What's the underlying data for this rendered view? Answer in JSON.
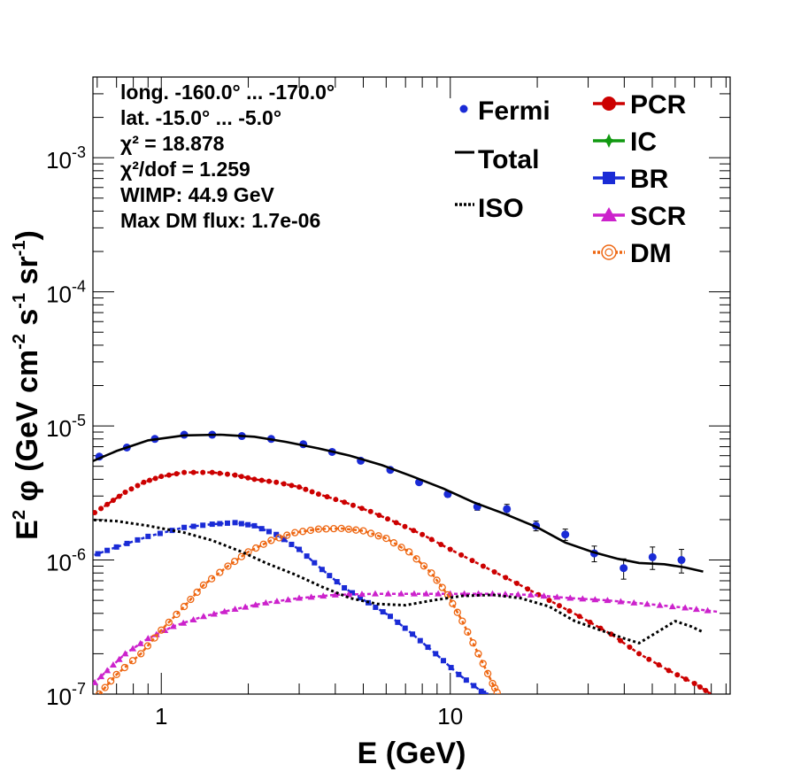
{
  "chart_data": {
    "type": "scatter",
    "x_scale": "log",
    "y_scale": "log",
    "xlim": [
      0.58,
      93
    ],
    "ylim": [
      1e-07,
      0.004
    ],
    "xlabel": "E (GeV)",
    "ylabel_parts": {
      "base": "E",
      "sup": "2",
      "middle": "φ (GeV cm",
      "sup2": "-2",
      "s": " s",
      "sup3": "-1",
      "sr": " sr",
      "sup4": "-1",
      "end": ")"
    },
    "x_ticks": [
      {
        "value": 1,
        "label": "1"
      },
      {
        "value": 10,
        "label": "10"
      }
    ],
    "y_ticks": [
      {
        "value": 1e-07,
        "base": "10",
        "exp": "-7"
      },
      {
        "value": 1e-06,
        "base": "10",
        "exp": "-6"
      },
      {
        "value": 1e-05,
        "base": "10",
        "exp": "-5"
      },
      {
        "value": 0.0001,
        "base": "10",
        "exp": "-4"
      },
      {
        "value": 0.001,
        "base": "10",
        "exp": "-3"
      }
    ],
    "info_lines": [
      "long. -160.0° ... -170.0°",
      "lat. -15.0° ... -5.0°",
      "χ² = 18.878",
      "χ²/dof = 1.259",
      "WIMP: 44.9 GeV",
      "Max DM flux: 1.7e-06"
    ],
    "legend_left": [
      {
        "name": "Fermi",
        "style": "point",
        "color": "#1a2bd6"
      },
      {
        "name": "Total",
        "style": "line",
        "color": "#000000"
      },
      {
        "name": "ISO",
        "style": "dotted",
        "color": "#000000"
      }
    ],
    "legend_right": [
      {
        "name": "PCR",
        "style": "circle",
        "color": "#cc0000"
      },
      {
        "name": "IC",
        "style": "star",
        "color": "#119911"
      },
      {
        "name": "BR",
        "style": "square",
        "color": "#1a2bd6"
      },
      {
        "name": "SCR",
        "style": "triangle",
        "color": "#cc22cc"
      },
      {
        "name": "DM",
        "style": "opencircle",
        "color": "#ee6611"
      }
    ],
    "series": [
      {
        "name": "Fermi",
        "kind": "points",
        "color": "#1a2bd6",
        "points": [
          [
            0.61,
            5.9e-06,
            2e-07
          ],
          [
            0.76,
            6.9e-06,
            2e-07
          ],
          [
            0.95,
            8e-06,
            2.5e-07
          ],
          [
            1.2,
            8.6e-06,
            2.5e-07
          ],
          [
            1.5,
            8.6e-06,
            2.5e-07
          ],
          [
            1.9,
            8.4e-06,
            2.5e-07
          ],
          [
            2.4,
            8e-06,
            2.5e-07
          ],
          [
            3.1,
            7.3e-06,
            2.5e-07
          ],
          [
            3.9,
            6.4e-06,
            2e-07
          ],
          [
            4.9,
            5.5e-06,
            2e-07
          ],
          [
            6.2,
            4.7e-06,
            2e-07
          ],
          [
            7.8,
            3.8e-06,
            1.5e-07
          ],
          [
            9.8,
            3.1e-06,
            1.5e-07
          ],
          [
            12.4,
            2.5e-06,
            1.5e-07
          ],
          [
            15.7,
            2.4e-06,
            2e-07
          ],
          [
            19.8,
            1.8e-06,
            1.5e-07
          ],
          [
            25,
            1.55e-06,
            1.5e-07
          ],
          [
            31.5,
            1.12e-06,
            1.5e-07
          ],
          [
            39.8,
            8.7e-07,
            1.5e-07
          ],
          [
            50.1,
            1.05e-06,
            2e-07
          ],
          [
            63.1,
            1e-06,
            2e-07
          ]
        ]
      },
      {
        "name": "Total",
        "kind": "line",
        "color": "#000000",
        "points": [
          [
            0.56,
            5.3e-06
          ],
          [
            0.7,
            6.5e-06
          ],
          [
            0.9,
            7.8e-06
          ],
          [
            1.2,
            8.5e-06
          ],
          [
            1.6,
            8.6e-06
          ],
          [
            2.1,
            8.3e-06
          ],
          [
            2.7,
            7.6e-06
          ],
          [
            3.5,
            6.8e-06
          ],
          [
            4.5,
            6e-06
          ],
          [
            5.8,
            5.1e-06
          ],
          [
            7.4,
            4.2e-06
          ],
          [
            9.5,
            3.4e-06
          ],
          [
            12,
            2.7e-06
          ],
          [
            15.5,
            2.2e-06
          ],
          [
            20,
            1.75e-06
          ],
          [
            25,
            1.35e-06
          ],
          [
            31,
            1.15e-06
          ],
          [
            38,
            1.02e-06
          ],
          [
            45,
            9.5e-07
          ],
          [
            55,
            9.3e-07
          ],
          [
            65,
            8.8e-07
          ],
          [
            75,
            8.2e-07
          ]
        ]
      },
      {
        "name": "PCR",
        "kind": "marker_line",
        "color": "#cc0000",
        "points": [
          [
            0.56,
            2.1e-06
          ],
          [
            0.65,
            2.6e-06
          ],
          [
            0.75,
            3.2e-06
          ],
          [
            0.87,
            3.8e-06
          ],
          [
            1.0,
            4.2e-06
          ],
          [
            1.2,
            4.5e-06
          ],
          [
            1.5,
            4.5e-06
          ],
          [
            1.8,
            4.3e-06
          ],
          [
            2.1,
            4e-06
          ],
          [
            2.5,
            3.8e-06
          ],
          [
            3.0,
            3.5e-06
          ],
          [
            3.5,
            3.1e-06
          ],
          [
            4.3,
            2.7e-06
          ],
          [
            5.3,
            2.3e-06
          ],
          [
            6.5,
            1.9e-06
          ],
          [
            8.0,
            1.55e-06
          ],
          [
            10,
            1.2e-06
          ],
          [
            13,
            9e-07
          ],
          [
            17,
            6.7e-07
          ],
          [
            22,
            5e-07
          ],
          [
            28,
            3.8e-07
          ],
          [
            36,
            2.8e-07
          ],
          [
            45,
            2e-07
          ],
          [
            57,
            1.5e-07
          ],
          [
            70,
            1.2e-07
          ],
          [
            80,
            1e-07
          ]
        ]
      },
      {
        "name": "BR",
        "kind": "marker_line",
        "color": "#1a2bd6",
        "points": [
          [
            0.56,
            1.05e-06
          ],
          [
            0.7,
            1.25e-06
          ],
          [
            0.9,
            1.5e-06
          ],
          [
            1.2,
            1.75e-06
          ],
          [
            1.5,
            1.85e-06
          ],
          [
            1.8,
            1.9e-06
          ],
          [
            2.1,
            1.8e-06
          ],
          [
            2.5,
            1.55e-06
          ],
          [
            3.0,
            1.2e-06
          ],
          [
            3.6,
            8.5e-07
          ],
          [
            4.3,
            6.2e-07
          ],
          [
            5.2,
            4.8e-07
          ],
          [
            6.2,
            3.8e-07
          ],
          [
            7.4,
            2.8e-07
          ],
          [
            8.9,
            2e-07
          ],
          [
            10.7,
            1.4e-07
          ],
          [
            12.8,
            1.05e-07
          ],
          [
            13.5,
            9.5e-08
          ]
        ]
      },
      {
        "name": "SCR",
        "kind": "marker_line",
        "color": "#cc22cc",
        "points": [
          [
            0.56,
            1.1e-07
          ],
          [
            0.65,
            1.5e-07
          ],
          [
            0.75,
            2e-07
          ],
          [
            0.9,
            2.6e-07
          ],
          [
            1.1,
            3.2e-07
          ],
          [
            1.4,
            3.8e-07
          ],
          [
            1.8,
            4.3e-07
          ],
          [
            2.3,
            4.8e-07
          ],
          [
            3.0,
            5.2e-07
          ],
          [
            4.0,
            5.5e-07
          ],
          [
            5.5,
            5.6e-07
          ],
          [
            7.5,
            5.6e-07
          ],
          [
            10,
            5.6e-07
          ],
          [
            14,
            5.6e-07
          ],
          [
            19,
            5.5e-07
          ],
          [
            26,
            5.2e-07
          ],
          [
            35,
            5e-07
          ],
          [
            48,
            4.7e-07
          ],
          [
            65,
            4.4e-07
          ],
          [
            85,
            4.1e-07
          ]
        ]
      },
      {
        "name": "DM",
        "kind": "marker_line",
        "color": "#ee6611",
        "points": [
          [
            0.61,
            1e-07
          ],
          [
            0.7,
            1.4e-07
          ],
          [
            0.85,
            2e-07
          ],
          [
            1.0,
            3e-07
          ],
          [
            1.2,
            4.5e-07
          ],
          [
            1.4,
            6.5e-07
          ],
          [
            1.7,
            9e-07
          ],
          [
            2.0,
            1.15e-06
          ],
          [
            2.4,
            1.4e-06
          ],
          [
            2.9,
            1.6e-06
          ],
          [
            3.5,
            1.7e-06
          ],
          [
            4.2,
            1.72e-06
          ],
          [
            5.0,
            1.65e-06
          ],
          [
            6.0,
            1.45e-06
          ],
          [
            7.2,
            1.15e-06
          ],
          [
            8.6,
            8e-07
          ],
          [
            9.8,
            5.5e-07
          ],
          [
            11,
            3.5e-07
          ],
          [
            12.5,
            2e-07
          ],
          [
            14,
            1.2e-07
          ],
          [
            14.8,
            9.5e-08
          ]
        ]
      },
      {
        "name": "ISO",
        "kind": "dotted",
        "color": "#000000",
        "points": [
          [
            0.56,
            2e-06
          ],
          [
            0.7,
            1.95e-06
          ],
          [
            0.9,
            1.8e-06
          ],
          [
            1.2,
            1.6e-06
          ],
          [
            1.5,
            1.4e-06
          ],
          [
            1.9,
            1.15e-06
          ],
          [
            2.3,
            9.5e-07
          ],
          [
            2.9,
            7.8e-07
          ],
          [
            3.6,
            6.3e-07
          ],
          [
            4.5,
            5.2e-07
          ],
          [
            5.6,
            4.7e-07
          ],
          [
            7.0,
            4.6e-07
          ],
          [
            8.7,
            5e-07
          ],
          [
            11,
            5.4e-07
          ],
          [
            14,
            5.5e-07
          ],
          [
            17.5,
            5.2e-07
          ],
          [
            22,
            4.5e-07
          ],
          [
            27,
            3.5e-07
          ],
          [
            33,
            3e-07
          ],
          [
            40,
            2.6e-07
          ],
          [
            45,
            2.4e-07
          ],
          [
            52,
            2.9e-07
          ],
          [
            60,
            3.5e-07
          ],
          [
            68,
            3.2e-07
          ],
          [
            75,
            2.9e-07
          ]
        ]
      }
    ]
  }
}
